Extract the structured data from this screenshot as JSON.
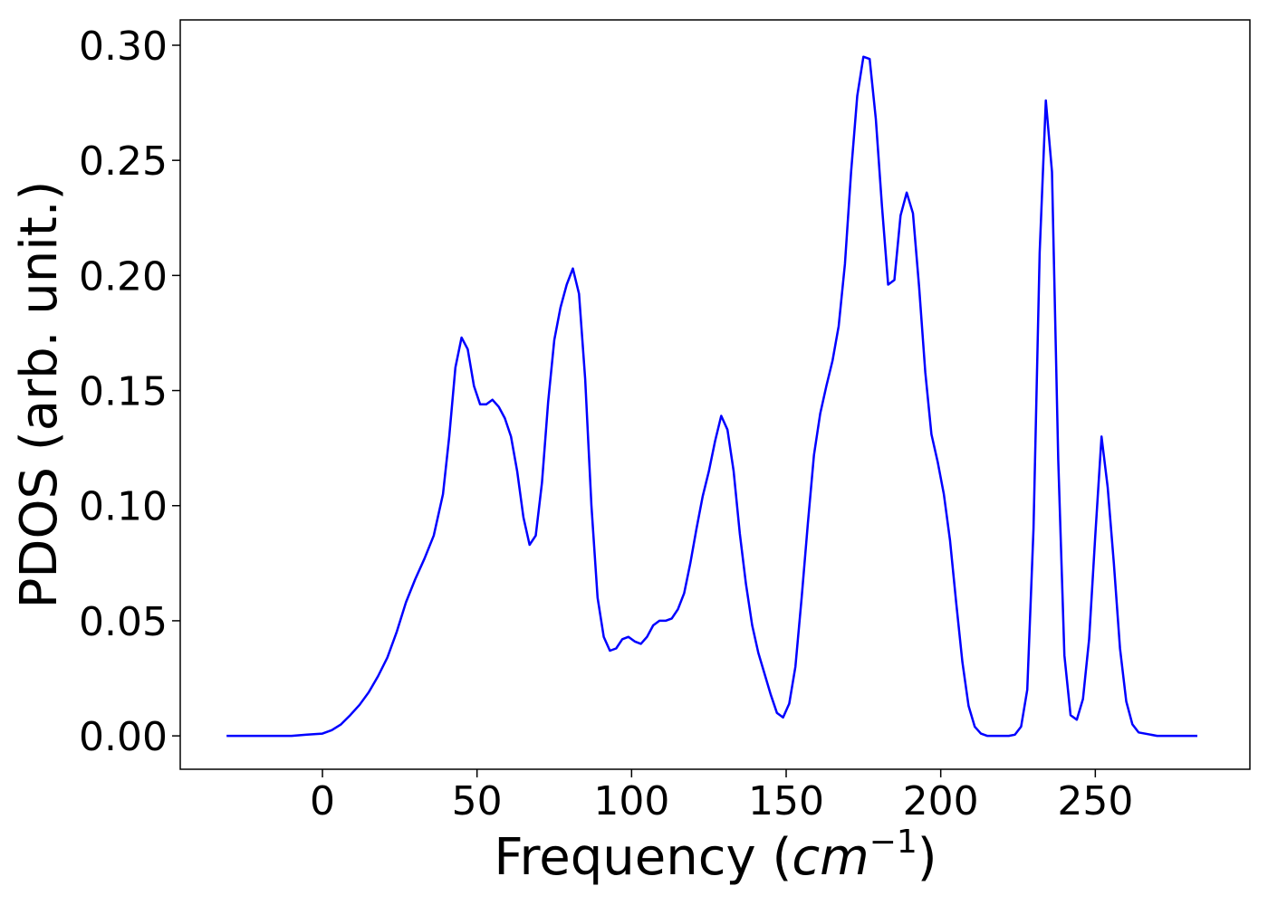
{
  "chart_data": {
    "type": "line",
    "xlabel": "Frequency",
    "xlabel_unit": "cm",
    "xlabel_unit_exponent": "−1",
    "ylabel": "PDOS (arb. unit.)",
    "xlim": [
      -46,
      300
    ],
    "ylim": [
      -0.0145,
      0.311
    ],
    "xticks": [
      0,
      50,
      100,
      150,
      200,
      250
    ],
    "xtick_labels": [
      "0",
      "50",
      "100",
      "150",
      "200",
      "250"
    ],
    "yticks": [
      0.0,
      0.05,
      0.1,
      0.15,
      0.2,
      0.25,
      0.3
    ],
    "ytick_labels": [
      "0.00",
      "0.05",
      "0.10",
      "0.15",
      "0.20",
      "0.25",
      "0.30"
    ],
    "grid": false,
    "series": [
      {
        "color": "#0000ff",
        "x": [
          -31,
          -10,
          -5,
          0,
          3,
          6,
          9,
          12,
          15,
          18,
          21,
          24,
          27,
          30,
          33,
          36,
          39,
          41,
          43,
          45,
          47,
          49,
          51,
          53,
          55,
          57,
          59,
          61,
          63,
          65,
          67,
          69,
          71,
          73,
          75,
          77,
          79,
          81,
          83,
          85,
          87,
          89,
          91,
          93,
          95,
          97,
          99,
          101,
          103,
          105,
          107,
          109,
          111,
          113,
          115,
          117,
          119,
          121,
          123,
          125,
          127,
          129,
          131,
          133,
          135,
          137,
          139,
          141,
          143,
          145,
          147,
          149,
          151,
          153,
          155,
          157,
          159,
          161,
          163,
          165,
          167,
          169,
          171,
          173,
          175,
          177,
          179,
          181,
          183,
          185,
          187,
          189,
          191,
          193,
          195,
          197,
          199,
          201,
          203,
          205,
          207,
          209,
          211,
          213,
          215,
          222,
          224,
          226,
          228,
          230,
          232,
          234,
          236,
          238,
          240,
          242,
          244,
          246,
          248,
          250,
          252,
          254,
          256,
          258,
          260,
          262,
          264,
          270,
          283
        ],
        "y": [
          0.0,
          0.0,
          0.0005,
          0.001,
          0.0025,
          0.005,
          0.009,
          0.0135,
          0.019,
          0.026,
          0.034,
          0.045,
          0.058,
          0.068,
          0.077,
          0.087,
          0.105,
          0.13,
          0.16,
          0.173,
          0.168,
          0.152,
          0.144,
          0.144,
          0.146,
          0.143,
          0.138,
          0.13,
          0.115,
          0.095,
          0.083,
          0.087,
          0.11,
          0.145,
          0.172,
          0.186,
          0.196,
          0.203,
          0.192,
          0.155,
          0.1,
          0.06,
          0.043,
          0.037,
          0.038,
          0.042,
          0.043,
          0.041,
          0.04,
          0.043,
          0.048,
          0.05,
          0.05,
          0.051,
          0.055,
          0.062,
          0.075,
          0.09,
          0.104,
          0.115,
          0.128,
          0.139,
          0.133,
          0.115,
          0.088,
          0.066,
          0.048,
          0.036,
          0.027,
          0.018,
          0.01,
          0.008,
          0.014,
          0.03,
          0.06,
          0.092,
          0.122,
          0.14,
          0.152,
          0.163,
          0.178,
          0.205,
          0.245,
          0.278,
          0.295,
          0.294,
          0.268,
          0.23,
          0.196,
          0.198,
          0.226,
          0.236,
          0.227,
          0.195,
          0.158,
          0.131,
          0.119,
          0.105,
          0.085,
          0.058,
          0.032,
          0.013,
          0.004,
          0.001,
          0.0,
          0.0,
          0.0005,
          0.004,
          0.02,
          0.09,
          0.21,
          0.276,
          0.245,
          0.12,
          0.035,
          0.009,
          0.007,
          0.016,
          0.042,
          0.087,
          0.13,
          0.108,
          0.075,
          0.038,
          0.015,
          0.005,
          0.0015,
          0.0,
          0.0
        ]
      }
    ]
  }
}
